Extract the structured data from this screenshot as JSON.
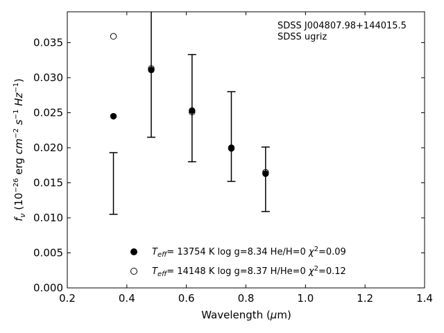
{
  "chart_data": {
    "type": "scatter",
    "annotations": [
      "SDSS J004807.98+144015.5",
      "SDSS ugriz"
    ],
    "xlabel": "Wavelength (μm)",
    "ylabel": "f_ν (10^-26 erg cm^-2 s^-1 Hz^-1)",
    "xlim": [
      0.2,
      1.4
    ],
    "ylim": [
      0.0,
      0.0394
    ],
    "x_ticks": [
      0.2,
      0.4,
      0.6,
      0.8,
      1.0,
      1.2,
      1.4
    ],
    "x_tick_labels": [
      "0.2",
      "0.4",
      "0.6",
      "0.8",
      "1.0",
      "1.2",
      "1.4"
    ],
    "y_ticks": [
      0.0,
      0.005,
      0.01,
      0.015,
      0.02,
      0.025,
      0.03,
      0.035
    ],
    "y_tick_labels": [
      "0.000",
      "0.005",
      "0.010",
      "0.015",
      "0.020",
      "0.025",
      "0.030",
      "0.035"
    ],
    "grid": false,
    "legend_position": "bottom-center",
    "observed": {
      "x": [
        0.355,
        0.482,
        0.619,
        0.751,
        0.866
      ],
      "y_low": [
        0.0105,
        0.0215,
        0.018,
        0.0152,
        0.0109
      ],
      "y_high": [
        0.0193,
        0.0398,
        0.0333,
        0.028,
        0.0201
      ]
    },
    "series": [
      {
        "name": "T_eff= 13754 K  log g=8.34  He/H=0  χ²=0.09",
        "marker": "filled-circle",
        "x": [
          0.355,
          0.482,
          0.619,
          0.751,
          0.866
        ],
        "y": [
          0.0245,
          0.0311,
          0.0253,
          0.02,
          0.0163
        ]
      },
      {
        "name": "T_eff= 14148 K  log g=8.37  H/He=0  χ²=0.12",
        "marker": "open-circle",
        "x": [
          0.355,
          0.482,
          0.619,
          0.751,
          0.866
        ],
        "y": [
          0.0359,
          0.0313,
          0.0251,
          0.0199,
          0.0165
        ]
      }
    ]
  }
}
